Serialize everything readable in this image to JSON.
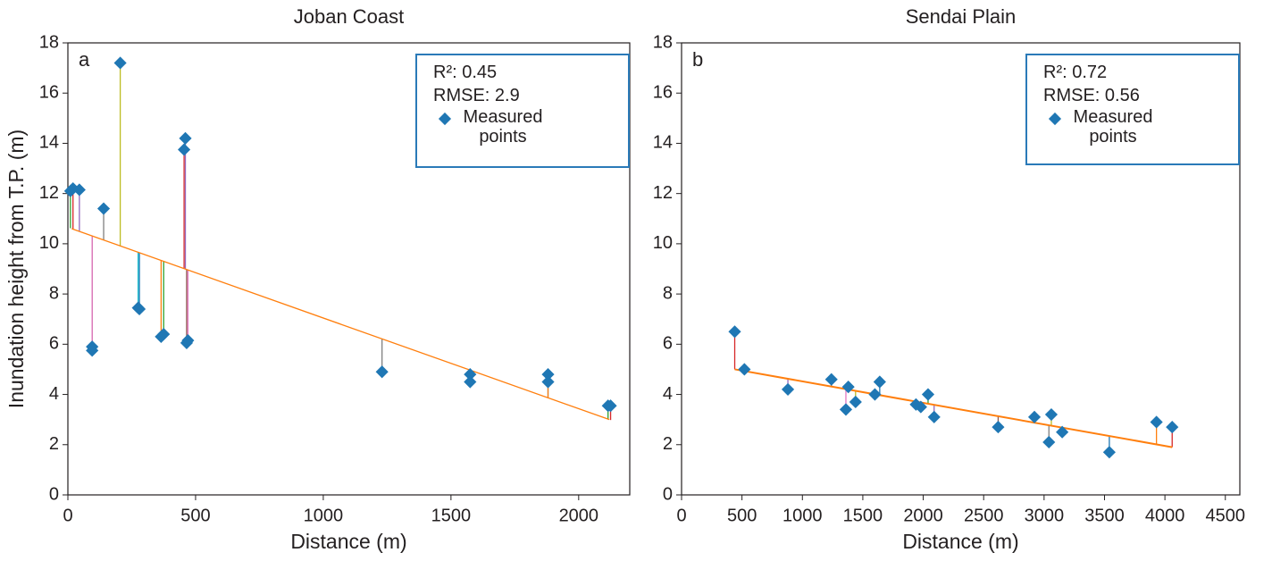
{
  "chart_data": [
    {
      "type": "scatter",
      "title": "Joban Coast",
      "panel": "a",
      "x_label": "Distance (m)",
      "y_label": "Inundation height from T.P. (m)",
      "stats": [
        "R²: 0.45",
        "RMSE: 2.9"
      ],
      "xlim": [
        0,
        2200
      ],
      "xticks": [
        0,
        500,
        1000,
        1500,
        2000
      ],
      "ylim": [
        0,
        18
      ],
      "yticks": [
        0,
        2,
        4,
        6,
        8,
        10,
        12,
        14,
        16,
        18
      ],
      "series": [
        {
          "name": "Measured points",
          "color": "#1f77b4",
          "x": [
            10,
            20,
            45,
            95,
            95,
            140,
            205,
            275,
            280,
            365,
            375,
            455,
            460,
            465,
            470,
            1230,
            1575,
            1575,
            1880,
            1880,
            2115,
            2125
          ],
          "values": [
            12.1,
            12.2,
            12.15,
            5.9,
            5.75,
            11.4,
            17.2,
            7.45,
            7.4,
            6.3,
            6.4,
            13.75,
            14.2,
            6.05,
            6.15,
            4.9,
            4.8,
            4.5,
            4.8,
            4.5,
            3.55,
            3.55
          ]
        }
      ],
      "fit": {
        "color": "#ff7f0e",
        "x": [
          15,
          2120
        ],
        "values": [
          10.6,
          3.0
        ]
      },
      "residual_colors": [
        "#2ca02c",
        "#d62728",
        "#9467bd",
        "#8c564b",
        "#e377c2",
        "#7f7f7f",
        "#bcbd22",
        "#17becf",
        "#1f77b4",
        "#ff7f0e"
      ]
    },
    {
      "type": "scatter",
      "title": "Sendai Plain",
      "panel": "b",
      "x_label": "Distance (m)",
      "stats": [
        "R²: 0.72",
        "RMSE: 0.56"
      ],
      "xlim": [
        0,
        4620
      ],
      "xticks": [
        0,
        500,
        1000,
        1500,
        2000,
        2500,
        3000,
        3500,
        4000,
        4500
      ],
      "ylim": [
        0,
        18
      ],
      "yticks": [
        0,
        2,
        4,
        6,
        8,
        10,
        12,
        14,
        16,
        18
      ],
      "series": [
        {
          "name": "Measured points",
          "color": "#1f77b4",
          "x": [
            440,
            520,
            880,
            1240,
            1360,
            1380,
            1440,
            1600,
            1640,
            1940,
            1980,
            2040,
            2090,
            2620,
            2920,
            3040,
            3060,
            3150,
            3540,
            3930,
            4060
          ],
          "values": [
            6.5,
            5.0,
            4.2,
            4.6,
            3.4,
            4.3,
            3.7,
            4.0,
            4.5,
            3.6,
            3.5,
            4.0,
            3.1,
            2.7,
            3.1,
            2.1,
            3.2,
            2.5,
            1.7,
            2.9,
            2.7
          ]
        }
      ],
      "fit": {
        "color": "#ff7f0e",
        "x": [
          440,
          4060
        ],
        "values": [
          5.0,
          1.9
        ]
      },
      "residual_colors": [
        "#d62728",
        "#2ca02c",
        "#9467bd",
        "#8c564b",
        "#e377c2",
        "#7f7f7f",
        "#bcbd22",
        "#17becf",
        "#1f77b4",
        "#ff7f0e"
      ]
    }
  ]
}
